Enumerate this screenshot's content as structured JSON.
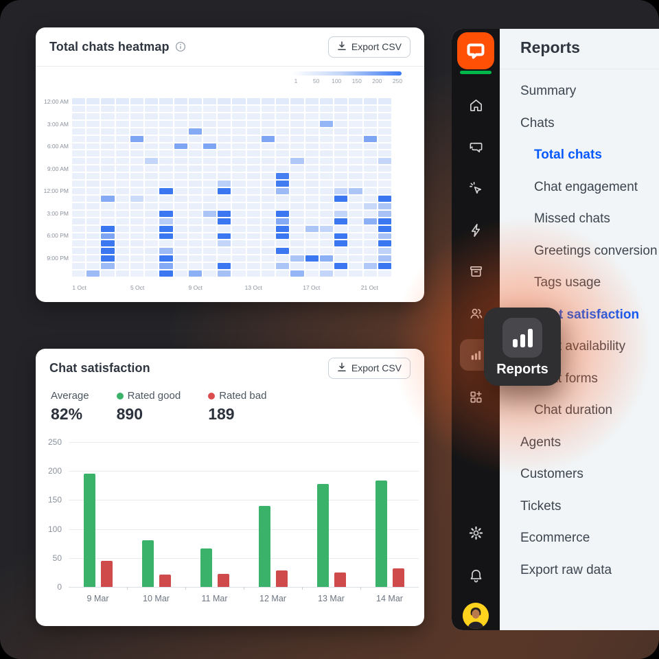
{
  "heatmap_card": {
    "title": "Total chats heatmap",
    "export_button": "Export CSV"
  },
  "satisfaction_card": {
    "title": "Chat satisfaction",
    "export_button": "Export CSV",
    "stats": [
      {
        "label": "Average",
        "value": "82%",
        "dot_color": ""
      },
      {
        "label": "Rated good",
        "value": "890",
        "dot_color": "#3ab269"
      },
      {
        "label": "Rated bad",
        "value": "189",
        "dot_color": "#dd4c4c"
      }
    ]
  },
  "chart_data": [
    {
      "type": "heatmap",
      "title": "Total chats heatmap",
      "rows": 24,
      "columns": 22,
      "x_tick_labels": [
        "1 Oct",
        "5 Oct",
        "9 Oct",
        "13 Oct",
        "17 Oct",
        "21 Oct"
      ],
      "x_tick_cols": [
        0,
        4,
        8,
        12,
        16,
        20
      ],
      "y_tick_labels": [
        "12:00 AM",
        "3:00 AM",
        "6:00 AM",
        "9:00 AM",
        "12:00 PM",
        "3:00 PM",
        "6:00 PM",
        "9:00 PM"
      ],
      "y_tick_rows": [
        0,
        3,
        6,
        9,
        12,
        15,
        18,
        21
      ],
      "colorbar": {
        "ticks": [
          "1",
          "50",
          "100",
          "150",
          "200",
          "250"
        ],
        "min": 1,
        "max": 250,
        "low_color": "#f1f5fb",
        "high_color": "#2f6ff0"
      },
      "values": [
        [
          22,
          20,
          23,
          21,
          20,
          22,
          20,
          23,
          21,
          20,
          23,
          21,
          20,
          22,
          21,
          23,
          20,
          21,
          22,
          20,
          23,
          21
        ],
        [
          10,
          8,
          12,
          9,
          7,
          11,
          8,
          10,
          9,
          8,
          12,
          10,
          7,
          9,
          11,
          8,
          10,
          9,
          12,
          8,
          10,
          9
        ],
        [
          12,
          9,
          11,
          8,
          10,
          12,
          9,
          11,
          10,
          8,
          12,
          9,
          10,
          11,
          9,
          12,
          8,
          10,
          11,
          9,
          12,
          10
        ],
        [
          9,
          11,
          8,
          10,
          9,
          8,
          11,
          9,
          10,
          12,
          8,
          10,
          9,
          11,
          8,
          10,
          9,
          120,
          10,
          8,
          11,
          9
        ],
        [
          11,
          8,
          10,
          9,
          12,
          10,
          8,
          11,
          140,
          9,
          10,
          8,
          12,
          9,
          10,
          11,
          8,
          9,
          12,
          10,
          8,
          11
        ],
        [
          8,
          10,
          9,
          11,
          150,
          8,
          10,
          9,
          12,
          8,
          10,
          11,
          9,
          150,
          8,
          10,
          12,
          9,
          8,
          11,
          150,
          9
        ],
        [
          10,
          9,
          12,
          8,
          10,
          11,
          9,
          150,
          8,
          150,
          10,
          9,
          11,
          8,
          12,
          9,
          10,
          8,
          11,
          9,
          10,
          12
        ],
        [
          9,
          11,
          8,
          10,
          12,
          9,
          8,
          10,
          11,
          9,
          12,
          8,
          10,
          9,
          11,
          8,
          10,
          12,
          9,
          8,
          11,
          10
        ],
        [
          11,
          8,
          10,
          9,
          8,
          60,
          10,
          12,
          9,
          11,
          8,
          10,
          9,
          12,
          8,
          85,
          10,
          9,
          11,
          8,
          10,
          60
        ],
        [
          8,
          10,
          12,
          9,
          11,
          8,
          10,
          9,
          12,
          8,
          11,
          9,
          10,
          8,
          12,
          10,
          9,
          11,
          8,
          10,
          9,
          12
        ],
        [
          10,
          9,
          8,
          11,
          9,
          12,
          8,
          10,
          9,
          11,
          10,
          8,
          12,
          9,
          220,
          8,
          10,
          9,
          11,
          12,
          8,
          10
        ],
        [
          9,
          12,
          10,
          8,
          11,
          9,
          10,
          8,
          12,
          9,
          70,
          11,
          8,
          10,
          225,
          9,
          12,
          8,
          10,
          9,
          11,
          8
        ],
        [
          11,
          8,
          9,
          12,
          8,
          10,
          235,
          9,
          11,
          8,
          235,
          10,
          9,
          12,
          110,
          8,
          10,
          11,
          60,
          90,
          9,
          10
        ],
        [
          8,
          10,
          140,
          9,
          50,
          11,
          9,
          12,
          8,
          10,
          9,
          8,
          11,
          10,
          12,
          9,
          8,
          10,
          235,
          9,
          10,
          235
        ],
        [
          10,
          11,
          9,
          8,
          12,
          9,
          10,
          8,
          11,
          12,
          8,
          10,
          9,
          11,
          8,
          10,
          12,
          9,
          8,
          11,
          55,
          90
        ],
        [
          9,
          8,
          11,
          10,
          9,
          12,
          235,
          8,
          10,
          90,
          235,
          9,
          11,
          8,
          235,
          10,
          8,
          12,
          60,
          9,
          11,
          95
        ],
        [
          12,
          10,
          8,
          9,
          11,
          8,
          75,
          10,
          9,
          12,
          235,
          8,
          10,
          9,
          140,
          11,
          9,
          8,
          235,
          10,
          130,
          235
        ],
        [
          8,
          9,
          235,
          11,
          8,
          10,
          235,
          9,
          12,
          8,
          10,
          11,
          9,
          10,
          235,
          8,
          90,
          60,
          10,
          9,
          8,
          235
        ],
        [
          10,
          12,
          150,
          8,
          10,
          9,
          235,
          11,
          8,
          10,
          235,
          9,
          12,
          8,
          235,
          10,
          9,
          11,
          235,
          8,
          10,
          95
        ],
        [
          9,
          8,
          235,
          10,
          12,
          8,
          9,
          11,
          10,
          8,
          60,
          9,
          8,
          11,
          10,
          12,
          8,
          9,
          235,
          10,
          11,
          235
        ],
        [
          11,
          10,
          235,
          9,
          8,
          12,
          110,
          8,
          10,
          9,
          11,
          8,
          10,
          12,
          235,
          9,
          10,
          8,
          9,
          11,
          8,
          65
        ],
        [
          8,
          11,
          235,
          10,
          9,
          8,
          235,
          12,
          9,
          10,
          8,
          11,
          9,
          8,
          10,
          90,
          235,
          130,
          9,
          10,
          12,
          95
        ],
        [
          10,
          9,
          110,
          8,
          11,
          10,
          140,
          9,
          8,
          11,
          235,
          8,
          10,
          9,
          90,
          10,
          8,
          11,
          235,
          9,
          85,
          235
        ],
        [
          9,
          110,
          10,
          12,
          8,
          9,
          235,
          10,
          130,
          9,
          100,
          8,
          11,
          10,
          9,
          120,
          8,
          60,
          10,
          11,
          9,
          8
        ]
      ]
    },
    {
      "type": "bar",
      "title": "Chat satisfaction",
      "categories": [
        "9 Mar",
        "10 Mar",
        "11 Mar",
        "12 Mar",
        "13 Mar",
        "14 Mar"
      ],
      "series": [
        {
          "name": "Rated good",
          "color": "#3ab269",
          "values": [
            195,
            80,
            66,
            140,
            178,
            184
          ]
        },
        {
          "name": "Rated bad",
          "color": "#cf4b4b",
          "values": [
            45,
            21,
            23,
            28,
            25,
            32
          ]
        }
      ],
      "ylim": [
        0,
        250
      ],
      "yticks": [
        0,
        50,
        100,
        150,
        200,
        250
      ],
      "grid": true,
      "legend_position": "none"
    }
  ],
  "sidebar": {
    "rail": {
      "logo": "livechat-logo",
      "items": [
        {
          "icon": "home-icon",
          "active": false
        },
        {
          "icon": "chats-icon",
          "active": false
        },
        {
          "icon": "engage-icon",
          "active": false
        },
        {
          "icon": "automation-icon",
          "active": false
        },
        {
          "icon": "archives-icon",
          "active": false
        },
        {
          "icon": "team-icon",
          "active": false
        },
        {
          "icon": "reports-icon",
          "active": true
        },
        {
          "icon": "apps-icon",
          "active": false
        }
      ],
      "bottom_items": [
        {
          "icon": "settings-icon"
        },
        {
          "icon": "notifications-icon"
        },
        {
          "icon": "avatar"
        }
      ]
    },
    "tooltip": {
      "label": "Reports",
      "icon": "bar-chart-icon"
    },
    "panel": {
      "title": "Reports",
      "items": [
        {
          "label": "Summary",
          "level": 1,
          "active": false
        },
        {
          "label": "Chats",
          "level": 1,
          "active": false
        },
        {
          "label": "Total chats",
          "level": 2,
          "active": true
        },
        {
          "label": "Chat engagement",
          "level": 2,
          "active": false
        },
        {
          "label": "Missed chats",
          "level": 2,
          "active": false
        },
        {
          "label": "Greetings conversion",
          "level": 2,
          "active": false
        },
        {
          "label": "Tags usage",
          "level": 2,
          "active": false
        },
        {
          "label": "Chat satisfaction",
          "level": 2,
          "active": true
        },
        {
          "label": "Chat availability",
          "level": 2,
          "active": false
        },
        {
          "label": "Chat forms",
          "level": 2,
          "active": false
        },
        {
          "label": "Chat duration",
          "level": 2,
          "active": false
        },
        {
          "label": "Agents",
          "level": 1,
          "active": false
        },
        {
          "label": "Customers",
          "level": 1,
          "active": false
        },
        {
          "label": "Tickets",
          "level": 1,
          "active": false
        },
        {
          "label": "Ecommerce",
          "level": 1,
          "active": false
        },
        {
          "label": "Export raw data",
          "level": 1,
          "active": false
        }
      ]
    }
  },
  "colors": {
    "accent_blue": "#0659fe",
    "heatmap_high": "#2f6ff0",
    "heatmap_low": "#f1f5fb",
    "good_green": "#3ab269",
    "bad_red": "#cf4b4b",
    "logo_orange": "#ff5005",
    "rail_bg": "#141416",
    "panel_bg": "#f1f5f8"
  }
}
